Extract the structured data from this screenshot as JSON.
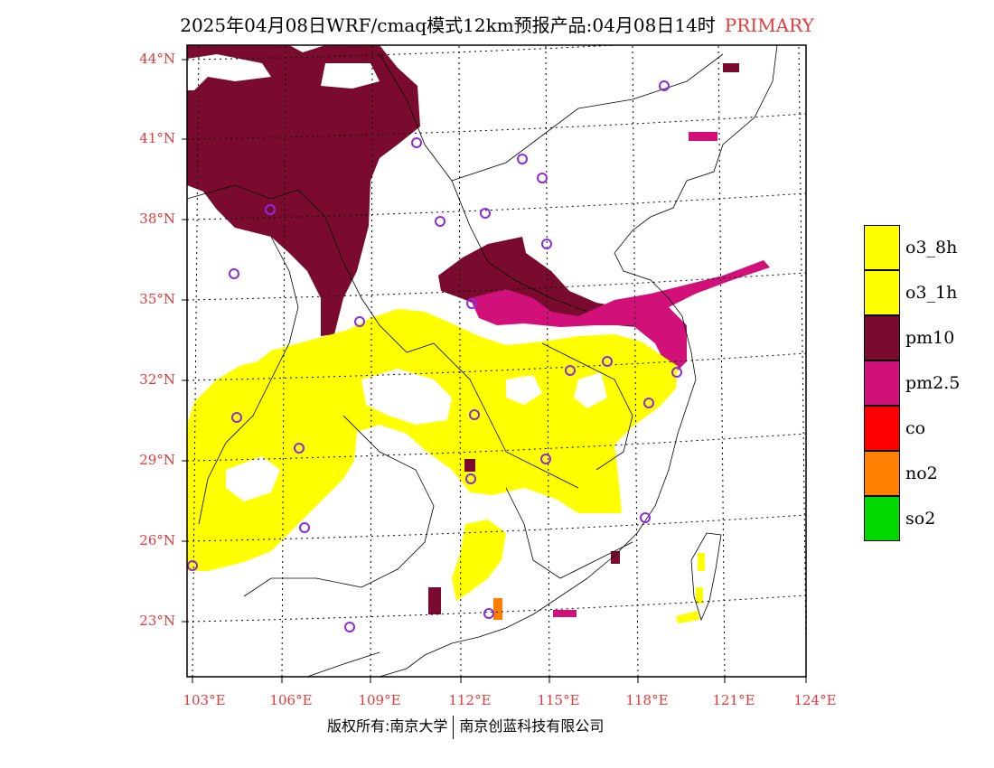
{
  "title": {
    "text": "2025年04月08日WRF/cmaq模式12km预报产品:04月08日14时",
    "tag": "PRIMARY",
    "tag_color": "#e8383a"
  },
  "axes": {
    "lat_labels": [
      "44°N",
      "41°N",
      "38°N",
      "35°N",
      "32°N",
      "29°N",
      "26°N",
      "23°N"
    ],
    "lon_labels": [
      "103°E",
      "106°E",
      "109°E",
      "112°E",
      "115°E",
      "118°E",
      "121°E",
      "124°E"
    ],
    "label_color": "#e8383a"
  },
  "legend": [
    {
      "label": "o3_8h",
      "color": "#ffff00"
    },
    {
      "label": "o3_1h",
      "color": "#ffff00"
    },
    {
      "label": "pm10",
      "color": "#7a0a2e"
    },
    {
      "label": "pm2.5",
      "color": "#d1107a"
    },
    {
      "label": "co",
      "color": "#ff0000"
    },
    {
      "label": "no2",
      "color": "#ff7f00"
    },
    {
      "label": "so2",
      "color": "#00d800"
    }
  ],
  "credit": {
    "left": "版权所有:南京大学",
    "right": "南京创蓝科技有限公司"
  },
  "map_features": {
    "station_marker": "circle-icon",
    "station_color": "#8a2be2"
  }
}
